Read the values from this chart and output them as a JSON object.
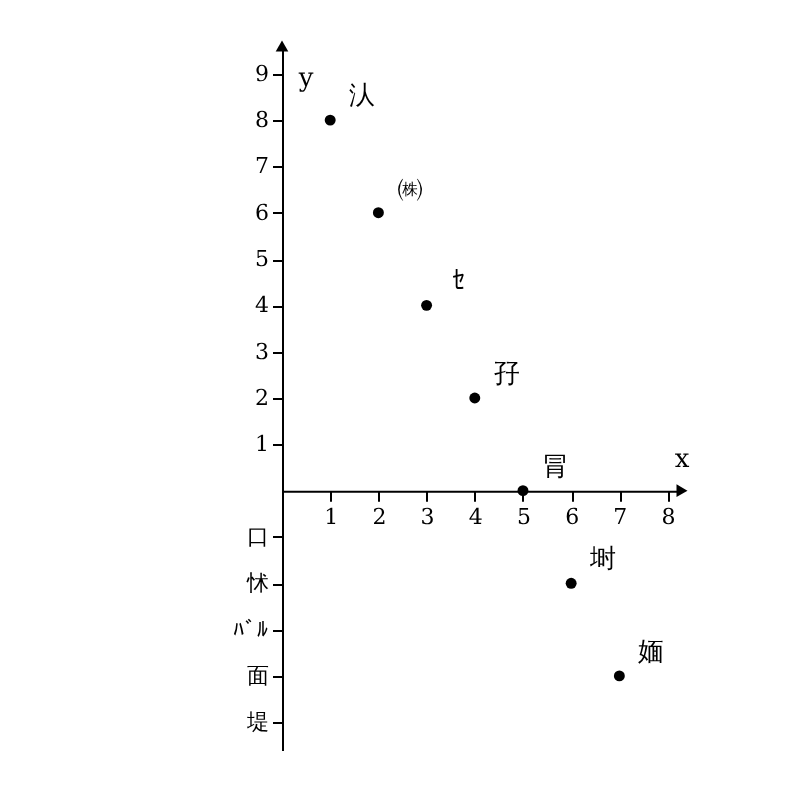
{
  "chart_data": {
    "type": "scatter",
    "xlabel": "x",
    "ylabel": "y",
    "x": [
      1,
      2,
      3,
      4,
      5,
      6,
      7
    ],
    "series": [
      {
        "color": "#000000",
        "values": [
          8,
          6,
          4,
          2,
          0,
          -2,
          -4
        ]
      }
    ],
    "xlim": [
      0,
      8.3
    ],
    "ylim": [
      -5.6,
      9.6
    ],
    "xticks": [
      1,
      2,
      3,
      4,
      5,
      6,
      7,
      8
    ],
    "yticks": [
      1,
      2,
      3,
      4,
      5,
      6,
      7,
      8,
      9,
      {
        "value": -1,
        "label": "口"
      },
      {
        "value": -2,
        "label": "怵"
      },
      {
        "value": -3,
        "label": "ﾊﾞﾙ"
      },
      {
        "value": -4,
        "label": "面"
      },
      {
        "value": -5,
        "label": "堤"
      }
    ],
    "annotations": [
      {
        "text": "汄",
        "x": 1,
        "y": 8
      },
      {
        "text": "㈱",
        "x": 2,
        "y": 6
      },
      {
        "text": "ｾ",
        "x": 3,
        "y": 4
      },
      {
        "text": "孖",
        "x": 4,
        "y": 2
      },
      {
        "text": "冐",
        "x": 5,
        "y": 0
      },
      {
        "text": "埘",
        "x": 6,
        "y": -2
      },
      {
        "text": "媔",
        "x": 7,
        "y": -4
      }
    ],
    "grid": false,
    "marker": "circle"
  }
}
